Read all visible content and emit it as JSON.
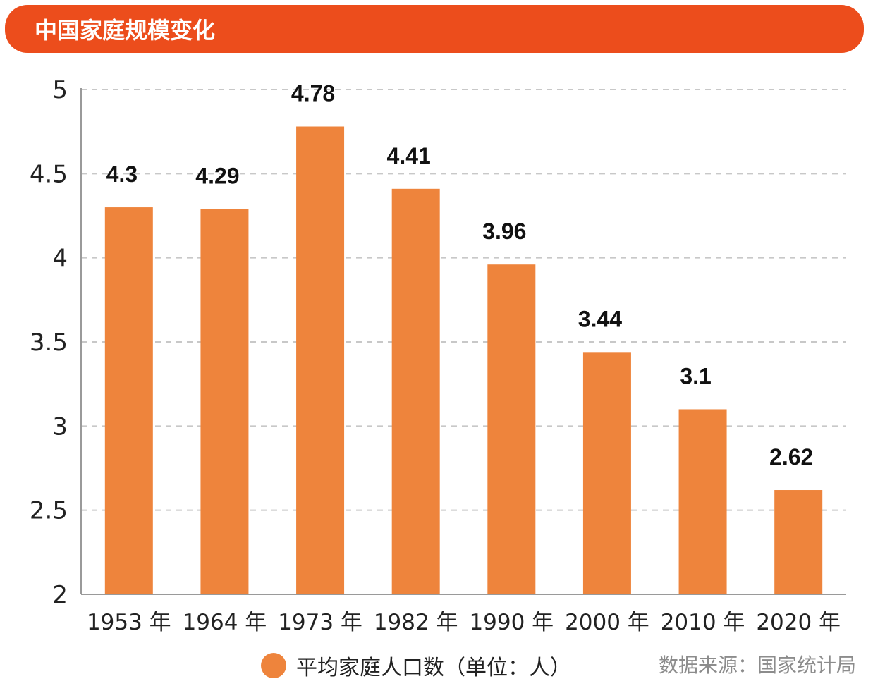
{
  "colors": {
    "title_bg": "#ec4d1c",
    "bar": "#ee843c",
    "grid": "#c8c8c8",
    "axis": "#9a9a9a"
  },
  "chart_data": {
    "type": "bar",
    "title": "中国家庭规模变化",
    "categories": [
      "1953 年",
      "1964 年",
      "1973 年",
      "1982 年",
      "1990 年",
      "2000 年",
      "2010 年",
      "2020 年"
    ],
    "series": [
      {
        "name": "平均家庭人口数（单位：人）",
        "values": [
          4.3,
          4.29,
          4.78,
          4.41,
          3.96,
          3.44,
          3.1,
          2.62
        ]
      }
    ],
    "data_labels": [
      "4.3",
      "4.29",
      "4.78",
      "4.41",
      "3.96",
      "3.44",
      "3.1",
      "2.62"
    ],
    "yticks": [
      "5",
      "4.5",
      "4",
      "3.5",
      "3",
      "2.5",
      "2"
    ],
    "ylim": [
      2,
      5
    ],
    "grid": true,
    "legend_position": "bottom",
    "source": "数据来源：国家统计局"
  }
}
